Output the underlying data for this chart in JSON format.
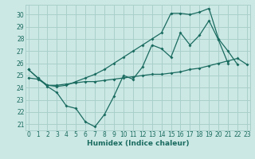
{
  "xlabel": "Humidex (Indice chaleur)",
  "background_color": "#cce8e4",
  "grid_color": "#aacfcb",
  "line_color": "#1a6b60",
  "x_ticks": [
    0,
    1,
    2,
    3,
    4,
    5,
    6,
    7,
    8,
    9,
    10,
    11,
    12,
    13,
    14,
    15,
    16,
    17,
    18,
    19,
    20,
    21,
    22,
    23
  ],
  "y_ticks": [
    21,
    22,
    23,
    24,
    25,
    26,
    27,
    28,
    29,
    30
  ],
  "xlim": [
    -0.3,
    23.3
  ],
  "ylim": [
    20.5,
    30.8
  ],
  "series1_x": [
    0,
    1,
    2,
    3,
    4,
    5,
    6,
    7,
    8,
    9,
    10,
    11,
    12,
    13,
    14,
    15,
    16,
    17,
    18,
    19,
    20,
    21
  ],
  "series1_y": [
    25.5,
    24.8,
    24.1,
    23.6,
    22.5,
    22.3,
    21.2,
    20.8,
    21.8,
    23.3,
    25.0,
    24.7,
    25.7,
    27.5,
    27.2,
    26.5,
    28.5,
    27.5,
    28.3,
    29.5,
    27.9,
    26.0
  ],
  "series2_x": [
    0,
    1,
    2,
    3,
    4,
    5,
    6,
    7,
    8,
    9,
    10,
    11,
    12,
    13,
    14,
    15,
    16,
    17,
    18,
    19,
    20,
    21,
    22,
    23
  ],
  "series2_y": [
    24.8,
    24.7,
    24.2,
    24.2,
    24.3,
    24.4,
    24.5,
    24.5,
    24.6,
    24.7,
    24.8,
    24.9,
    25.0,
    25.1,
    25.1,
    25.2,
    25.3,
    25.5,
    25.6,
    25.8,
    26.0,
    26.2,
    26.4,
    25.9
  ],
  "series3_x": [
    0,
    1,
    2,
    3,
    4,
    5,
    6,
    7,
    8,
    9,
    10,
    11,
    12,
    13,
    14,
    15,
    16,
    17,
    18,
    19,
    20,
    21,
    22,
    23
  ],
  "series3_y": [
    25.5,
    24.8,
    24.2,
    24.1,
    24.2,
    24.5,
    24.8,
    25.1,
    25.5,
    26.0,
    26.5,
    27.0,
    27.5,
    28.0,
    28.5,
    30.1,
    30.1,
    30.0,
    30.2,
    30.5,
    28.0,
    27.0,
    25.9,
    null
  ]
}
